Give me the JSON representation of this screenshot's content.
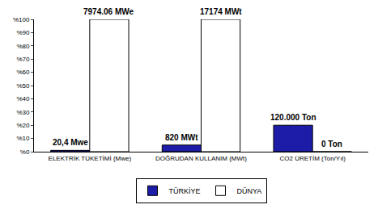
{
  "chart_data": {
    "type": "bar",
    "categories": [
      "ELEKTRİK TÜKETİMİ (Mwe)",
      "DOĞRUDAN KULLANIM (MWt)",
      "CO2 ÜRETİM (Ton/Yıl)"
    ],
    "series": [
      {
        "name": "TÜRKİYE",
        "color": "#1c1ca8",
        "values": [
          1,
          5,
          20
        ]
      },
      {
        "name": "DÜNYA",
        "color": "#ffffff",
        "values": [
          100,
          100,
          0
        ]
      }
    ],
    "ylim": [
      0,
      100
    ],
    "yticks": [
      {
        "value": 0,
        "label": "%0"
      },
      {
        "value": 10,
        "label": "%10"
      },
      {
        "value": 20,
        "label": "%20"
      },
      {
        "value": 30,
        "label": "%30"
      },
      {
        "value": 40,
        "label": "%40"
      },
      {
        "value": 50,
        "label": "%50"
      },
      {
        "value": 60,
        "label": "%60"
      },
      {
        "value": 70,
        "label": "%70"
      },
      {
        "value": 80,
        "label": "%80"
      },
      {
        "value": 90,
        "label": "%90"
      },
      {
        "value": 100,
        "label": "%100"
      }
    ],
    "grid": false,
    "legend": "bottom",
    "annotations": [
      {
        "text": "20,4 Mwe",
        "category": "ELEKTRİK TÜKETİMİ (Mwe)",
        "series": "TÜRKİYE"
      },
      {
        "text": "7974.06 MWe",
        "category": "ELEKTRİK TÜKETİMİ (Mwe)",
        "series": "DÜNYA"
      },
      {
        "text": "820 MWt",
        "category": "DOĞRUDAN KULLANIM (MWt)",
        "series": "TÜRKİYE"
      },
      {
        "text": "17174 MWt",
        "category": "DOĞRUDAN KULLANIM (MWt)",
        "series": "DÜNYA"
      },
      {
        "text": "120.000 Ton",
        "category": "CO2 ÜRETİM (Ton/Yıl)",
        "series": "TÜRKİYE"
      },
      {
        "text": "0 Ton",
        "category": "CO2 ÜRETİM (Ton/Yıl)",
        "series": "DÜNYA"
      }
    ]
  }
}
